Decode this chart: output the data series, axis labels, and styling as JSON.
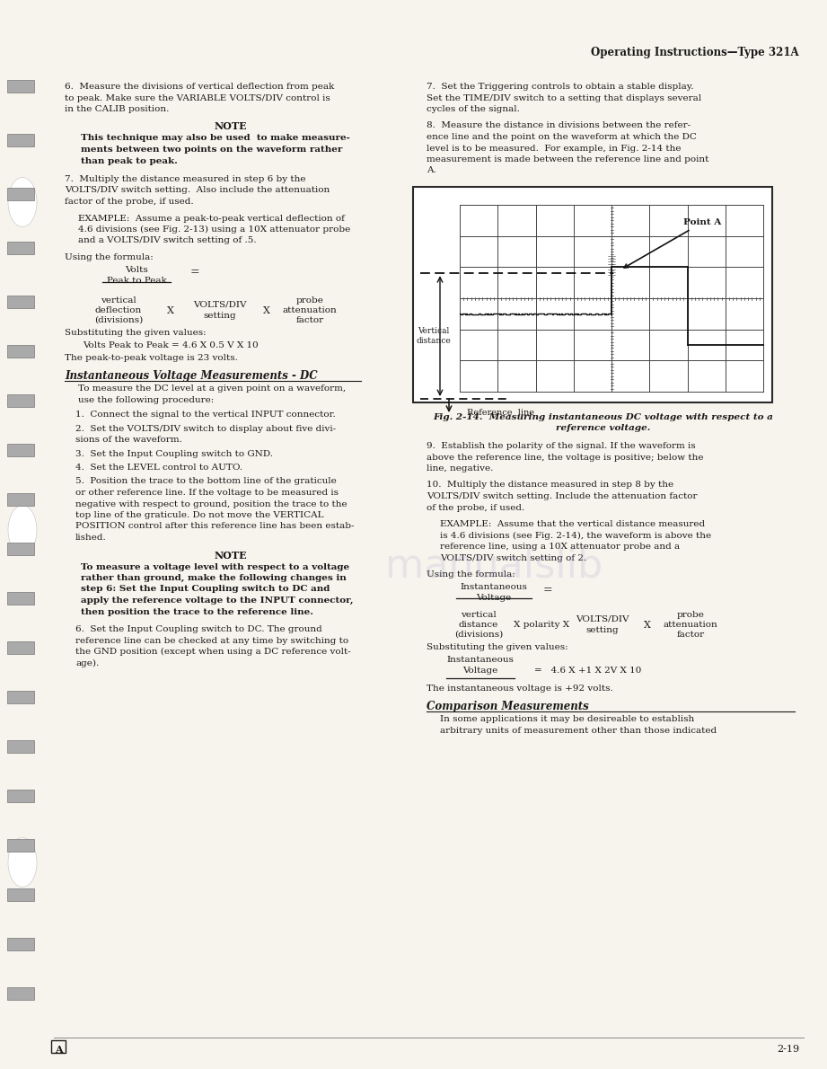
{
  "page_bg": "#f7f4ed",
  "text_color": "#1a1a1a",
  "header_text": "Operating Instructions—Type 321A",
  "footer_left": "A",
  "footer_right": "2-19",
  "left_column": {
    "para1": "6.  Measure the divisions of vertical deflection from peak\nto peak. Make sure the VARIABLE VOLTS/DIV control is\nin the CALIB position.",
    "note_title": "NOTE",
    "note_body": "This technique may also be used  to make measure-\nments between two points on the waveform rather\nthan peak to peak.",
    "para2": "7.  Multiply the distance measured in step 6 by the\nVOLTS/DIV switch setting.  Also include the attenuation\nfactor of the probe, if used.",
    "para3": "EXAMPLE:  Assume a peak-to-peak vertical deflection of\n4.6 divisions (see Fig. 2-13) using a 10X attenuator probe\nand a VOLTS/DIV switch setting of .5.",
    "formula_label": "Using the formula:",
    "formula_line1a": "Volts",
    "formula_line1b": "Peak to Peak",
    "formula_equals1": "=",
    "formula_line2a": "vertical",
    "formula_line2b": "deflection",
    "formula_line2c": "(divisions)",
    "formula_x1": "X",
    "formula_line3a": "VOLTS/DIV",
    "formula_line3b": "setting",
    "formula_x2": "X",
    "formula_line4a": "probe",
    "formula_line4b": "attenuation",
    "formula_line4c": "factor",
    "subst_label": "Substituting the given values:",
    "subst_eq": "Volts Peak to Peak = 4.6 X 0.5 V X 10",
    "peak_result": "The peak-to-peak voltage is 23 volts.",
    "section_title": "Instantaneous Voltage Measurements - DC",
    "section_intro": "To measure the DC level at a given point on a waveform,\nuse the following procedure:",
    "step1": "1.  Connect the signal to the vertical INPUT connector.",
    "step2": "2.  Set the VOLTS/DIV switch to display about five divi-\nsions of the waveform.",
    "step3": "3.  Set the Input Coupling switch to GND.",
    "step4": "4.  Set the LEVEL control to AUTO.",
    "step5": "5.  Position the trace to the bottom line of the graticule\nor other reference line. If the voltage to be measured is\nnegative with respect to ground, position the trace to the\ntop line of the graticule. Do not move the VERTICAL\nPOSITION control after this reference line has been estab-\nlished.",
    "note2_title": "NOTE",
    "note2_body": "To measure a voltage level with respect to a voltage\nrather than ground, make the following changes in\nstep 6: Set the Input Coupling switch to DC and\napply the reference voltage to the INPUT connector,\nthen position the trace to the reference line.",
    "step6": "6.  Set the Input Coupling switch to DC. The ground\nreference line can be checked at any time by switching to\nthe GND position (except when using a DC reference volt-\nage)."
  },
  "right_column": {
    "para1": "7.  Set the Triggering controls to obtain a stable display.\nSet the TIME/DIV switch to a setting that displays several\ncycles of the signal.",
    "para2": "8.  Measure the distance in divisions between the refer-\nence line and the point on the waveform at which the DC\nlevel is to be measured.  For example, in Fig. 2-14 the\nmeasurement is made between the reference line and point\nA.",
    "fig_caption": "Fig. 2-14.  Measuring instantaneous DC voltage with respect to a\nreference voltage.",
    "para3": "9.  Establish the polarity of the signal. If the waveform is\nabove the reference line, the voltage is positive; below the\nline, negative.",
    "para4": "10.  Multiply the distance measured in step 8 by the\nVOLTS/DIV switch setting. Include the attenuation factor\nof the probe, if used.",
    "para5": "EXAMPLE:  Assume that the vertical distance measured\nis 4.6 divisions (see Fig. 2-14), the waveform is above the\nreference line, using a 10X attenuator probe and a\nVOLTS/DIV switch setting of 2.",
    "formula_label": "Using the formula:",
    "formula_line1a": "Instantaneous",
    "formula_line1b": "Voltage",
    "formula_equals1": "=",
    "formula_line2a": "vertical",
    "formula_line2b": "distance",
    "formula_line2c": "(divisions)",
    "formula_x1": "X polarity X",
    "formula_line3a": "VOLTS/DIV",
    "formula_line3b": "setting",
    "formula_x2": "X",
    "formula_line4a": "probe",
    "formula_line4b": "attenuation",
    "formula_line4c": "factor",
    "subst_label": "Substituting the given values:",
    "formula_inst1": "Instantaneous",
    "formula_inst2": "Voltage",
    "formula_inst_eq": "=   4.6 X +1 X 2V X 10",
    "result": "The instantaneous voltage is +92 volts.",
    "section_title": "Comparison Measurements",
    "section_intro": "In some applications it may be desireable to establish\narbitrary units of measurement other than those indicated"
  }
}
